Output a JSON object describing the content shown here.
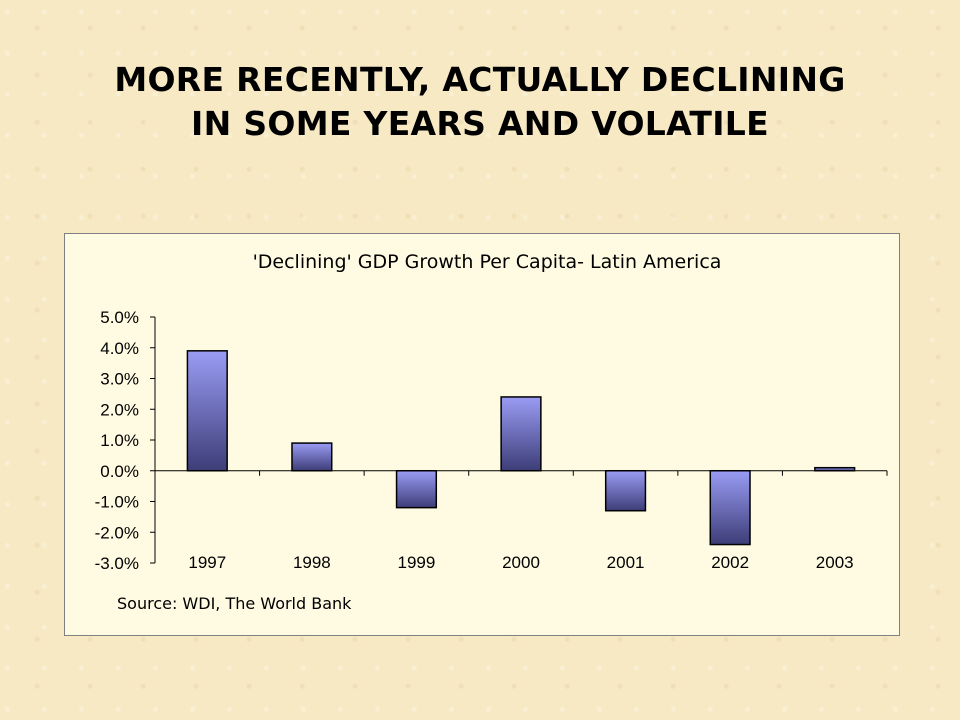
{
  "slide": {
    "title_line1": "MORE RECENTLY, ACTUALLY DECLINING",
    "title_line2": "IN SOME YEARS AND VOLATILE"
  },
  "chart_data": {
    "type": "bar",
    "title": "'Declining' GDP Growth Per Capita- Latin America",
    "categories": [
      "1997",
      "1998",
      "1999",
      "2000",
      "2001",
      "2002",
      "2003"
    ],
    "values": [
      3.9,
      0.9,
      -1.2,
      2.4,
      -1.3,
      -2.4,
      0.1
    ],
    "unit": "%",
    "ylim": [
      -3.0,
      5.0
    ],
    "yticks": [
      "5.0%",
      "4.0%",
      "3.0%",
      "2.0%",
      "1.0%",
      "0.0%",
      "-1.0%",
      "-2.0%",
      "-3.0%"
    ],
    "ytick_values": [
      5,
      4,
      3,
      2,
      1,
      0,
      -1,
      -2,
      -3
    ],
    "grid": false,
    "legend": "none",
    "source": "Source: WDI, The World Bank",
    "colors": {
      "bar_top": "#9a9cf4",
      "bar_bottom": "#3d3d78",
      "outline": "#000000"
    }
  }
}
